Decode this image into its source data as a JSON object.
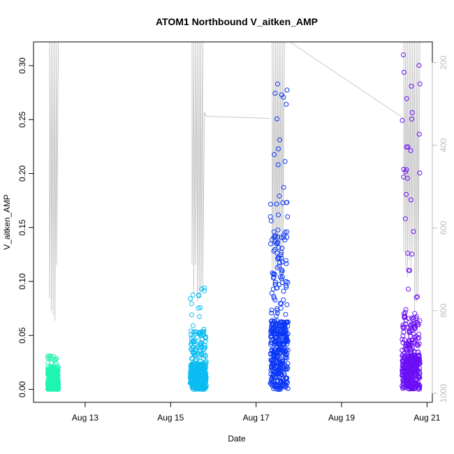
{
  "chart_data": {
    "type": "scatter",
    "title": "ATOM1 Northbound V_aitken_AMP",
    "xlabel": "Date",
    "ylabel": "V_aitken_AMP",
    "x_axis": {
      "type": "date",
      "range": [
        "2023-08-11T19:00",
        "2023-08-21T03:00"
      ],
      "tick_values": [
        "2023-08-13",
        "2023-08-15",
        "2023-08-17",
        "2023-08-19",
        "2023-08-21"
      ],
      "tick_labels": [
        "Aug 13",
        "Aug 15",
        "Aug 17",
        "Aug 19",
        "Aug 21"
      ]
    },
    "y_axis": {
      "range": [
        -0.012,
        0.322
      ],
      "tick_values": [
        0.0,
        0.05,
        0.1,
        0.15,
        0.2,
        0.25,
        0.3
      ],
      "tick_labels": [
        "0.00",
        "0.05",
        "0.10",
        "0.15",
        "0.20",
        "0.25",
        "0.30"
      ]
    },
    "y2_axis": {
      "reversed": true,
      "range": [
        1022,
        150
      ],
      "tick_values": [
        200,
        400,
        600,
        800,
        1000
      ],
      "tick_labels": [
        "200",
        "400",
        "600",
        "800",
        "1000"
      ],
      "color": "#bdbdbd"
    },
    "grid": false,
    "legend": "none",
    "series": [
      {
        "kind": "points",
        "color": "#1ef5b0",
        "bursts": [
          {
            "start": "2023-08-12T03:00",
            "end": "2023-08-12T09:00",
            "max": 0.031,
            "typical": 0.012
          }
        ]
      },
      {
        "kind": "points",
        "color": "#0bbcf2",
        "bursts": [
          {
            "start": "2023-08-15T11:00",
            "end": "2023-08-15T20:00",
            "max": 0.094,
            "typical": 0.03
          }
        ]
      },
      {
        "kind": "points",
        "color": "#0a36f5",
        "bursts": [
          {
            "start": "2023-08-17T08:00",
            "end": "2023-08-17T18:00",
            "max": 0.283,
            "typical": 0.08
          }
        ]
      },
      {
        "kind": "points",
        "color": "#6a0ff5",
        "bursts": [
          {
            "start": "2023-08-20T10:00",
            "end": "2023-08-20T20:00",
            "max": 0.31,
            "typical": 0.04
          }
        ]
      },
      {
        "kind": "line",
        "axis": "y2",
        "color": "#c8c8c8",
        "segments": [
          [
            [
              "2023-08-12T04:00",
              150
            ],
            [
              "2023-08-12T04:00",
              770
            ],
            [
              "2023-08-12T05:00",
              150
            ],
            [
              "2023-08-12T05:00",
              800
            ],
            [
              "2023-08-12T06:00",
              150
            ],
            [
              "2023-08-12T06:00",
              810
            ],
            [
              "2023-08-12T07:00",
              150
            ],
            [
              "2023-08-12T07:00",
              825
            ],
            [
              "2023-08-12T08:00",
              150
            ],
            [
              "2023-08-12T08:00",
              690
            ],
            [
              "2023-08-12T09:00",
              150
            ]
          ],
          [
            [
              "2023-08-15T12:00",
              150
            ],
            [
              "2023-08-15T12:00",
              690
            ],
            [
              "2023-08-15T13:00",
              150
            ],
            [
              "2023-08-15T13:00",
              760
            ],
            [
              "2023-08-15T14:00",
              150
            ],
            [
              "2023-08-15T14:00",
              690
            ],
            [
              "2023-08-15T15:00",
              150
            ],
            [
              "2023-08-15T15:00",
              780
            ],
            [
              "2023-08-15T16:00",
              150
            ],
            [
              "2023-08-15T16:00",
              770
            ],
            [
              "2023-08-15T17:00",
              150
            ],
            [
              "2023-08-15T17:00",
              760
            ],
            [
              "2023-08-15T18:00",
              150
            ],
            [
              "2023-08-15T18:00",
              740
            ],
            [
              "2023-08-15T19:00",
              320
            ],
            [
              "2023-08-15T20:00",
              330
            ]
          ],
          [
            [
              "2023-08-15T20:00",
              330
            ],
            [
              "2023-08-17T08:00",
              335
            ]
          ],
          [
            [
              "2023-08-17T08:00",
              150
            ],
            [
              "2023-08-17T09:00",
              150
            ],
            [
              "2023-08-17T09:00",
              700
            ],
            [
              "2023-08-17T10:00",
              150
            ],
            [
              "2023-08-17T10:00",
              700
            ],
            [
              "2023-08-17T11:00",
              150
            ],
            [
              "2023-08-17T11:00",
              720
            ],
            [
              "2023-08-17T12:00",
              150
            ],
            [
              "2023-08-17T12:00",
              700
            ],
            [
              "2023-08-17T13:00",
              150
            ],
            [
              "2023-08-17T13:00",
              670
            ],
            [
              "2023-08-17T14:00",
              150
            ],
            [
              "2023-08-17T14:00",
              700
            ],
            [
              "2023-08-17T15:00",
              150
            ],
            [
              "2023-08-17T15:00",
              690
            ],
            [
              "2023-08-17T16:00",
              150
            ],
            [
              "2023-08-17T17:00",
              150
            ]
          ],
          [
            [
              "2023-08-17T19:00",
              150
            ],
            [
              "2023-08-20T11:00",
              335
            ]
          ],
          [
            [
              "2023-08-20T11:00",
              150
            ],
            [
              "2023-08-20T11:00",
              660
            ],
            [
              "2023-08-20T12:00",
              150
            ],
            [
              "2023-08-20T12:00",
              700
            ],
            [
              "2023-08-20T13:00",
              150
            ],
            [
              "2023-08-20T13:00",
              720
            ],
            [
              "2023-08-20T14:00",
              150
            ],
            [
              "2023-08-20T14:00",
              680
            ],
            [
              "2023-08-20T15:00",
              150
            ],
            [
              "2023-08-20T15:00",
              700
            ],
            [
              "2023-08-20T16:00",
              150
            ],
            [
              "2023-08-20T16:00",
              660
            ],
            [
              "2023-08-20T17:00",
              150
            ],
            [
              "2023-08-20T17:00",
              800
            ],
            [
              "2023-08-20T18:00",
              150
            ],
            [
              "2023-08-20T18:00",
              780
            ],
            [
              "2023-08-20T19:00",
              150
            ],
            [
              "2023-08-20T19:00",
              760
            ],
            [
              "2023-08-20T20:00",
              150
            ]
          ]
        ]
      }
    ]
  }
}
